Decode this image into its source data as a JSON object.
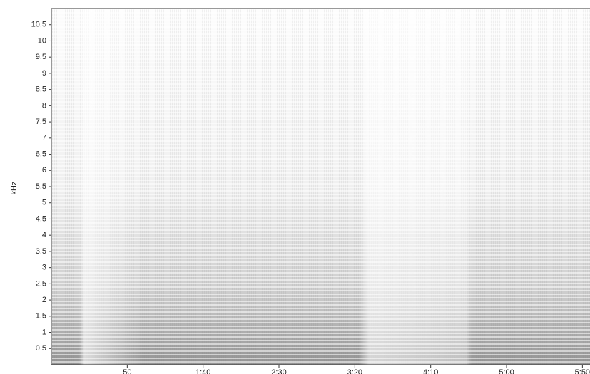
{
  "chart_data": {
    "type": "spectrogram",
    "ylabel": "kHz",
    "xlim": [
      0,
      355
    ],
    "xticks": [
      {
        "value": 50,
        "label": "50"
      },
      {
        "value": 100,
        "label": "1:40"
      },
      {
        "value": 150,
        "label": "2:30"
      },
      {
        "value": 200,
        "label": "3:20"
      },
      {
        "value": 250,
        "label": "4:10"
      },
      {
        "value": 300,
        "label": "5:00"
      },
      {
        "value": 350,
        "label": "5:50"
      }
    ],
    "ylim": [
      0,
      11
    ],
    "yticks": [
      0.5,
      1,
      1.5,
      2,
      2.5,
      3,
      3.5,
      4,
      4.5,
      5,
      5.5,
      6,
      6.5,
      7,
      7.5,
      8,
      8.5,
      9,
      9.5,
      10,
      10.5
    ]
  }
}
